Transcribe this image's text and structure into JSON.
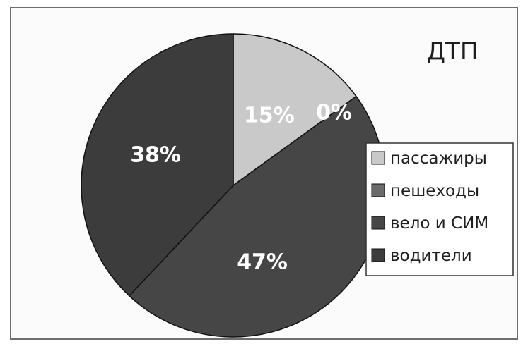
{
  "chart_data": {
    "type": "pie",
    "title": "ДТП",
    "legend_position": "right",
    "slices": [
      {
        "label": "пассажиры",
        "value": 15,
        "display": "15%",
        "color": "#c9c9c9"
      },
      {
        "label": "пешеходы",
        "value": 0,
        "display": "0%",
        "color": "#6a6a6a"
      },
      {
        "label": "вело и СИМ",
        "value": 47,
        "display": "47%",
        "color": "#464646"
      },
      {
        "label": "водители",
        "value": 38,
        "display": "38%",
        "color": "#3c3c3c"
      }
    ]
  }
}
